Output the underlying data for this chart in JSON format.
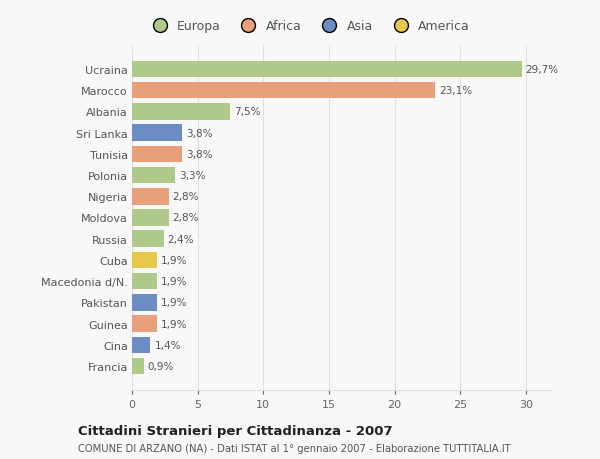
{
  "countries": [
    "Francia",
    "Cina",
    "Guinea",
    "Pakistan",
    "Macedonia d/N.",
    "Cuba",
    "Russia",
    "Moldova",
    "Nigeria",
    "Polonia",
    "Tunisia",
    "Sri Lanka",
    "Albania",
    "Marocco",
    "Ucraina"
  ],
  "values": [
    0.9,
    1.4,
    1.9,
    1.9,
    1.9,
    1.9,
    2.4,
    2.8,
    2.8,
    3.3,
    3.8,
    3.8,
    7.5,
    23.1,
    29.7
  ],
  "labels": [
    "0,9%",
    "1,4%",
    "1,9%",
    "1,9%",
    "1,9%",
    "1,9%",
    "2,4%",
    "2,8%",
    "2,8%",
    "3,3%",
    "3,8%",
    "3,8%",
    "7,5%",
    "23,1%",
    "29,7%"
  ],
  "colors": [
    "#aec98a",
    "#6b8dc4",
    "#e8a07a",
    "#6b8dc4",
    "#aec98a",
    "#e8c84a",
    "#aec98a",
    "#aec98a",
    "#e8a07a",
    "#aec98a",
    "#e8a07a",
    "#6b8dc4",
    "#aec98a",
    "#e8a07a",
    "#aec98a"
  ],
  "legend_labels": [
    "Europa",
    "Africa",
    "Asia",
    "America"
  ],
  "legend_colors": [
    "#aec98a",
    "#e8a07a",
    "#6b8dc4",
    "#e8c84a"
  ],
  "title": "Cittadini Stranieri per Cittadinanza - 2007",
  "subtitle": "COMUNE DI ARZANO (NA) - Dati ISTAT al 1° gennaio 2007 - Elaborazione TUTTITALIA.IT",
  "xlim": [
    0,
    32
  ],
  "xticks": [
    0,
    5,
    10,
    15,
    20,
    25,
    30
  ],
  "bg_color": "#f8f8f8",
  "grid_color": "#e0e0e0",
  "bar_height": 0.78
}
